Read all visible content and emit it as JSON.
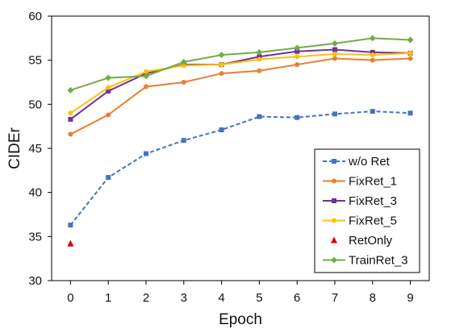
{
  "chart_data": {
    "type": "line",
    "title": "",
    "xlabel": "Epoch",
    "ylabel": "CIDEr",
    "x": [
      0,
      1,
      2,
      3,
      4,
      5,
      6,
      7,
      8,
      9
    ],
    "xticks": [
      "0",
      "1",
      "2",
      "3",
      "4",
      "5",
      "6",
      "7",
      "8",
      "9"
    ],
    "yticks": [
      "30",
      "35",
      "40",
      "45",
      "50",
      "55",
      "60"
    ],
    "ylim": [
      30,
      60
    ],
    "xlim": [
      -0.5,
      9.5
    ],
    "grid": false,
    "legend_position": "bottom-right",
    "series": [
      {
        "name": "w/o Ret",
        "color": "#4472C4",
        "marker": "square",
        "dashed": true,
        "values": [
          36.3,
          41.7,
          44.4,
          45.9,
          47.1,
          48.6,
          48.5,
          48.9,
          49.2,
          49.0
        ]
      },
      {
        "name": "FixRet_1",
        "color": "#ED7D31",
        "marker": "circle",
        "dashed": false,
        "values": [
          46.6,
          48.8,
          52.0,
          52.5,
          53.5,
          53.8,
          54.5,
          55.2,
          55.0,
          55.2
        ]
      },
      {
        "name": "FixRet_3",
        "color": "#7030A0",
        "marker": "square",
        "dashed": false,
        "values": [
          48.3,
          51.5,
          53.5,
          54.5,
          54.5,
          55.4,
          56.0,
          56.2,
          55.9,
          55.8
        ]
      },
      {
        "name": "FixRet_5",
        "color": "#FFC000",
        "marker": "circle",
        "dashed": false,
        "values": [
          49.0,
          51.9,
          53.7,
          54.4,
          54.5,
          55.1,
          55.4,
          55.7,
          55.6,
          55.8
        ]
      },
      {
        "name": "RetOnly",
        "color": "#E00000",
        "marker": "triangle",
        "points_only": true,
        "x": [
          0
        ],
        "values": [
          34.2
        ]
      },
      {
        "name": "TrainRet_3",
        "color": "#70AD47",
        "marker": "diamond",
        "dashed": false,
        "values": [
          51.6,
          53.0,
          53.2,
          54.8,
          55.6,
          55.9,
          56.4,
          56.9,
          57.5,
          57.3
        ]
      }
    ]
  }
}
